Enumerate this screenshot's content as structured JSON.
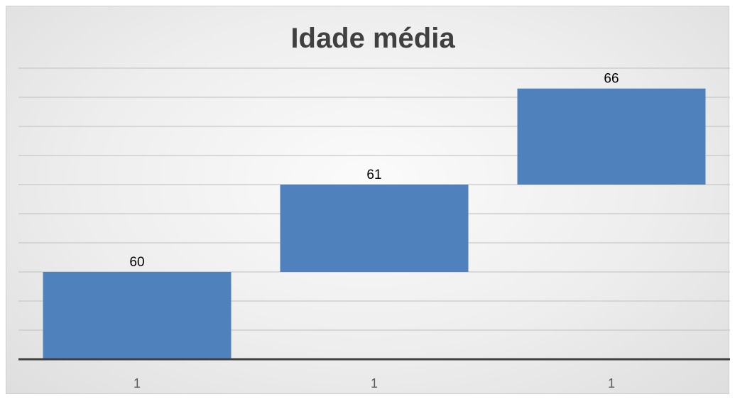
{
  "chart_data": {
    "type": "bar",
    "variant": "waterfall",
    "title": "Idade média",
    "categories": [
      "1",
      "1",
      "1"
    ],
    "values": [
      60,
      61,
      66
    ],
    "bars": [
      {
        "label": "60",
        "base": 0,
        "top": 3
      },
      {
        "label": "61",
        "base": 3,
        "top": 6
      },
      {
        "label": "66",
        "base": 6,
        "top": 9.3
      }
    ],
    "ylim": [
      0,
      10
    ],
    "gridlines": true,
    "legend": "none"
  },
  "colors": {
    "bar": "#4f81bd",
    "grid": "#c8c8c8",
    "axis": "#404040",
    "title": "#404040",
    "label": "#000000",
    "tick": "#595959"
  }
}
